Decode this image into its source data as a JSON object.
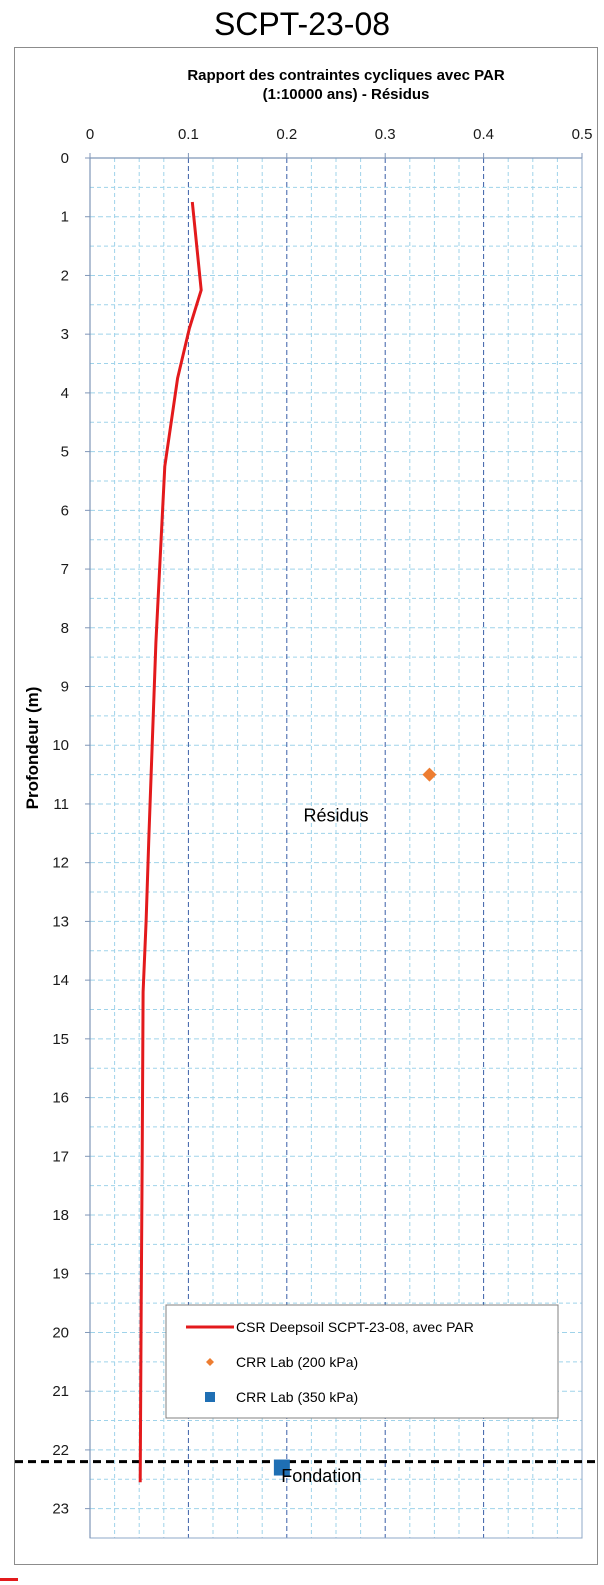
{
  "page": {
    "title": "SCPT-23-08"
  },
  "chart_data": {
    "type": "line",
    "title_lines": [
      "Rapport des contraintes cycliques avec PAR",
      "(1:10000 ans) - Résidus"
    ],
    "xlabel": "",
    "ylabel": "Profondeur (m)",
    "xlim": [
      0,
      0.5
    ],
    "ylim": [
      0,
      23.5
    ],
    "y_inverted": true,
    "x_axis_position": "top",
    "x_ticks": [
      0,
      0.1,
      0.2,
      0.3,
      0.4,
      0.5
    ],
    "x_tick_labels": [
      "0",
      "0.1",
      "0.2",
      "0.3",
      "0.4",
      "0.5"
    ],
    "y_ticks": [
      0,
      1,
      2,
      3,
      4,
      5,
      6,
      7,
      8,
      9,
      10,
      11,
      12,
      13,
      14,
      15,
      16,
      17,
      18,
      19,
      20,
      21,
      22,
      23
    ],
    "y_tick_labels": [
      "0",
      "1",
      "2",
      "3",
      "4",
      "5",
      "6",
      "7",
      "8",
      "9",
      "10",
      "11",
      "12",
      "13",
      "14",
      "15",
      "16",
      "17",
      "18",
      "19",
      "20",
      "21",
      "22",
      "23"
    ],
    "grid": true,
    "colors": {
      "csr_line": "#e31a1c",
      "crr_200": "#ed7d31",
      "crr_350": "#1f6fb4",
      "major_grid": "#3a5fa8",
      "minor_grid": "#9fd3ea",
      "fondation_line": "#000000"
    },
    "series": [
      {
        "name": "CSR Deepsoil SCPT-23-08, avec PAR",
        "kind": "line",
        "color": "#e31a1c",
        "points": [
          {
            "x": 0.104,
            "y": 0.75
          },
          {
            "x": 0.113,
            "y": 2.25
          },
          {
            "x": 0.101,
            "y": 2.9
          },
          {
            "x": 0.089,
            "y": 3.75
          },
          {
            "x": 0.076,
            "y": 5.25
          },
          {
            "x": 0.067,
            "y": 8.25
          },
          {
            "x": 0.06,
            "y": 11.5
          },
          {
            "x": 0.057,
            "y": 13.0
          },
          {
            "x": 0.054,
            "y": 14.2
          },
          {
            "x": 0.053,
            "y": 17.0
          },
          {
            "x": 0.052,
            "y": 19.5
          },
          {
            "x": 0.051,
            "y": 22.55
          }
        ]
      },
      {
        "name": "CRR Lab (200 kPa)",
        "kind": "marker",
        "marker": "diamond",
        "color": "#ed7d31",
        "points": [
          {
            "x": 0.345,
            "y": 10.5
          }
        ]
      },
      {
        "name": "CRR Lab (350 kPa)",
        "kind": "marker",
        "marker": "square",
        "color": "#1f6fb4",
        "points": [
          {
            "x": 0.195,
            "y": 22.3
          }
        ]
      }
    ],
    "reference_lines": [
      {
        "orientation": "horizontal",
        "y": 22.2,
        "style": "dashed",
        "color": "#000000",
        "label": "Fondation"
      }
    ],
    "annotations": [
      {
        "text": "Résidus",
        "x": 0.25,
        "y": 11.3
      },
      {
        "text": "Fondation",
        "x": 0.235,
        "y": 22.55
      }
    ],
    "legend": {
      "placement": "bottom-center",
      "entries": [
        "CSR Deepsoil SCPT-23-08, avec PAR",
        "CRR Lab (200 kPa)",
        "CRR Lab (350 kPa)"
      ]
    }
  }
}
